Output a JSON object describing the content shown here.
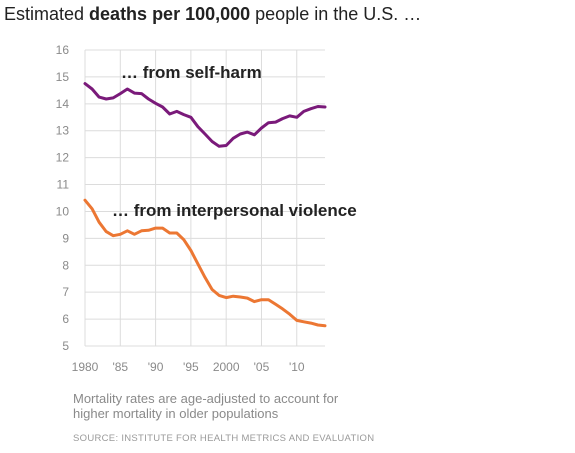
{
  "title": {
    "prefix": "Estimated ",
    "bold": "deaths per 100,000",
    "suffix": " people in the U.S. …"
  },
  "note": "Mortality rates are age-adjusted to account for higher mortality in older populations",
  "source": "SOURCE: INSTITUTE FOR HEALTH METRICS AND EVALUATION",
  "chart_data": {
    "type": "line",
    "title": "Estimated deaths per 100,000 people in the U.S. …",
    "xlabel": "",
    "ylabel": "",
    "xlim": [
      1980,
      2014
    ],
    "ylim": [
      5,
      16
    ],
    "grid": true,
    "x_ticks": [
      1980,
      1985,
      1990,
      1995,
      2000,
      2005,
      2010
    ],
    "x_tick_labels": [
      "1980",
      "'85",
      "'90",
      "'95",
      "2000",
      "'05",
      "'10"
    ],
    "y_ticks": [
      5,
      6,
      7,
      8,
      9,
      10,
      11,
      12,
      13,
      14,
      15,
      16
    ],
    "y_tick_labels": [
      "5",
      "6",
      "7",
      "8",
      "9",
      "10",
      "11",
      "12",
      "13",
      "14",
      "15",
      "16"
    ],
    "x": [
      1980,
      1981,
      1982,
      1983,
      1984,
      1985,
      1986,
      1987,
      1988,
      1989,
      1990,
      1991,
      1992,
      1993,
      1994,
      1995,
      1996,
      1997,
      1998,
      1999,
      2000,
      2001,
      2002,
      2003,
      2004,
      2005,
      2006,
      2007,
      2008,
      2009,
      2010,
      2011,
      2012,
      2013,
      2014
    ],
    "series": [
      {
        "name": "… from self-harm",
        "color": "#7a1a7a",
        "values": [
          14.75,
          14.55,
          14.25,
          14.18,
          14.22,
          14.38,
          14.55,
          14.4,
          14.38,
          14.18,
          14.02,
          13.88,
          13.62,
          13.72,
          13.6,
          13.5,
          13.15,
          12.88,
          12.6,
          12.42,
          12.45,
          12.72,
          12.88,
          12.95,
          12.85,
          13.1,
          13.3,
          13.32,
          13.45,
          13.55,
          13.5,
          13.72,
          13.82,
          13.9,
          13.88
        ]
      },
      {
        "name": "… from interpersonal violence",
        "color": "#ec7733",
        "values": [
          10.42,
          10.1,
          9.6,
          9.25,
          9.1,
          9.15,
          9.28,
          9.15,
          9.28,
          9.3,
          9.38,
          9.38,
          9.2,
          9.2,
          8.95,
          8.55,
          8.05,
          7.55,
          7.1,
          6.88,
          6.8,
          6.85,
          6.82,
          6.78,
          6.65,
          6.72,
          6.72,
          6.55,
          6.38,
          6.18,
          5.95,
          5.9,
          5.85,
          5.78,
          5.75
        ]
      }
    ]
  }
}
